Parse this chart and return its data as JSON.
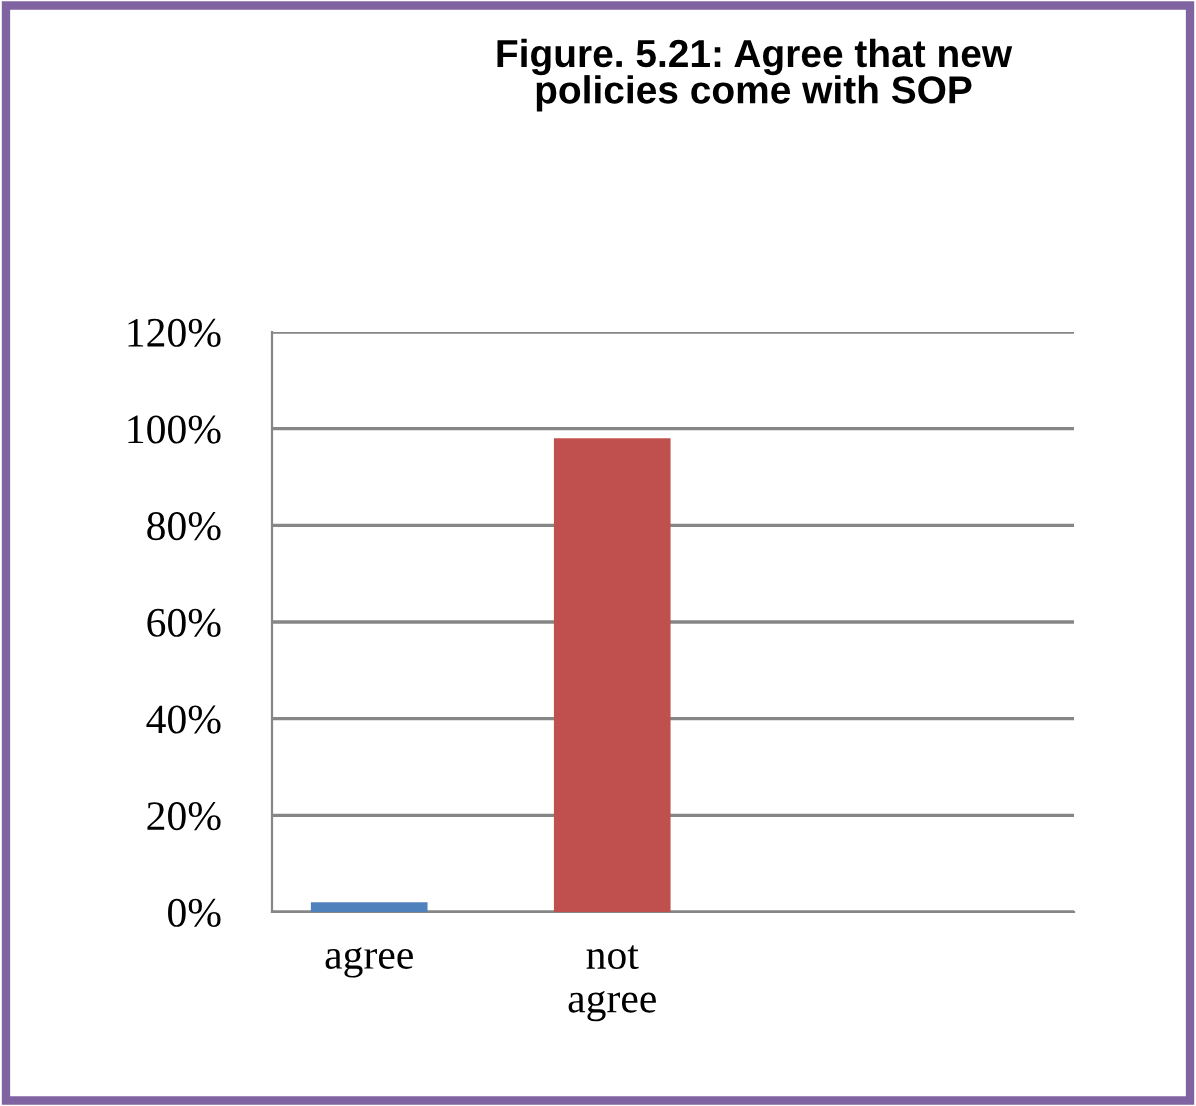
{
  "chart_data": {
    "type": "bar",
    "title": "Figure. 5.21: Agree that new\npolicies come with SOP",
    "categories": [
      "agree",
      "not\nagree"
    ],
    "values": [
      2,
      98
    ],
    "colors": [
      "#4f81bd",
      "#c0504d"
    ],
    "ylim": [
      0,
      120
    ],
    "yticks": [
      {
        "value": 0,
        "label": "0%"
      },
      {
        "value": 20,
        "label": "20%"
      },
      {
        "value": 40,
        "label": "40%"
      },
      {
        "value": 60,
        "label": "60%"
      },
      {
        "value": 80,
        "label": "80%"
      },
      {
        "value": 100,
        "label": "100%"
      },
      {
        "value": 120,
        "label": "120%"
      }
    ],
    "grid": "y",
    "legend": false
  }
}
